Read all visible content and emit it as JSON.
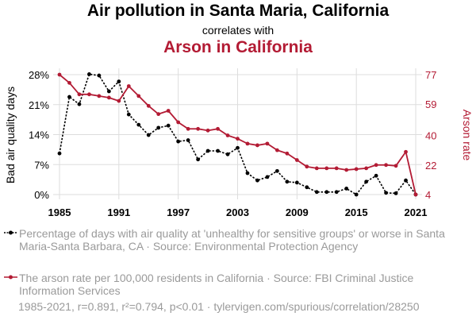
{
  "title": "Air pollution in Santa Maria, California",
  "subtitle": "correlates with",
  "title2": "Arson in California",
  "chart_data": {
    "type": "line",
    "x": [
      1985,
      1986,
      1987,
      1988,
      1989,
      1990,
      1991,
      1992,
      1993,
      1994,
      1995,
      1996,
      1997,
      1998,
      1999,
      2000,
      2001,
      2002,
      2003,
      2004,
      2005,
      2006,
      2007,
      2008,
      2009,
      2010,
      2011,
      2012,
      2013,
      2014,
      2015,
      2016,
      2017,
      2018,
      2019,
      2020,
      2021
    ],
    "series": [
      {
        "name": "Bad air quality days",
        "color": "#000000",
        "axis": "left",
        "values": [
          9.6,
          22.8,
          21.1,
          28.1,
          27.8,
          24.1,
          26.4,
          18.7,
          16.3,
          13.9,
          15.6,
          16.1,
          12.4,
          12.7,
          8.2,
          10.2,
          10.2,
          9.4,
          10.9,
          5.0,
          3.3,
          4.1,
          5.5,
          3.0,
          2.8,
          1.7,
          0.6,
          0.6,
          0.6,
          1.4,
          0.0,
          3.0,
          4.4,
          0.4,
          0.3,
          3.3,
          0.0
        ]
      },
      {
        "name": "Arson rate",
        "color": "#b31b34",
        "axis": "right",
        "values": [
          77,
          72,
          65,
          65,
          64,
          63,
          61,
          70,
          64,
          58,
          53,
          55,
          48,
          44,
          44,
          43,
          44,
          40,
          38,
          35,
          34,
          35,
          31,
          29,
          25,
          21,
          20,
          20,
          20,
          19,
          19.5,
          20,
          22,
          22,
          21.5,
          30,
          4
        ]
      }
    ],
    "y_left": {
      "label": "Bad air quality days",
      "ticks": [
        "0%",
        "7%",
        "14%",
        "21%",
        "28%"
      ],
      "tick_values": [
        0,
        7,
        14,
        21,
        28
      ],
      "range": [
        0,
        28
      ]
    },
    "y_right": {
      "label": "Arson rate",
      "ticks": [
        "4",
        "22",
        "40",
        "59",
        "77"
      ],
      "tick_values": [
        4,
        22,
        40,
        59,
        77
      ],
      "range": [
        4,
        77
      ]
    },
    "x_ticks": [
      "1985",
      "1991",
      "1997",
      "2003",
      "2009",
      "2015",
      "2021"
    ],
    "x_tick_values": [
      1985,
      1991,
      1997,
      2003,
      2009,
      2015,
      2021
    ],
    "x_range": [
      1985,
      2021
    ],
    "grid": true
  },
  "legend": [
    {
      "text": "Percentage of days with air quality at 'unhealthy for sensitive groups' or worse in Santa Maria-Santa Barbara, CA · Source: Environmental Protection Agency",
      "color": "#000000"
    },
    {
      "text": "The arson rate per 100,000 residents in California · Source: FBI Criminal Justice Information Services",
      "color": "#b31b34"
    }
  ],
  "footer": "1985-2021, r=0.891, r²=0.794, p<0.01 · tylervigen.com/spurious/correlation/28250"
}
